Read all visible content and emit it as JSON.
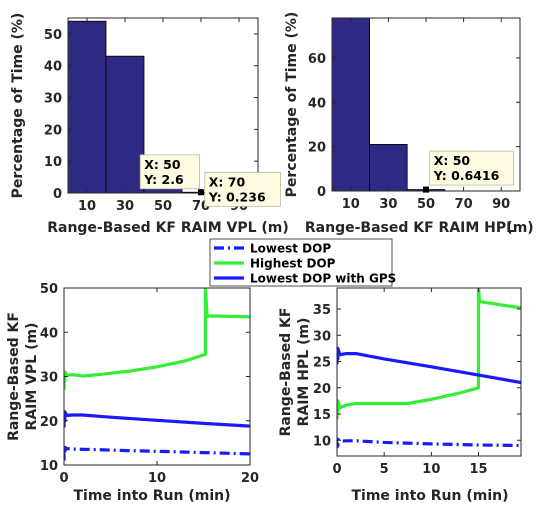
{
  "chart_data": [
    {
      "type": "bar",
      "xlabel": "Range-Based KF RAIM VPL (m)",
      "ylabel": "Percentage of Time (%)",
      "bin_width": 20,
      "bin_centers": [
        10,
        30,
        50,
        70,
        90
      ],
      "values": [
        54,
        43,
        2.6,
        0.236,
        0
      ],
      "xlim": [
        0,
        100
      ],
      "ylim": [
        0,
        55
      ],
      "xticks": [
        10,
        30,
        50,
        70,
        90
      ],
      "yticks": [
        0,
        10,
        20,
        30,
        40,
        50
      ],
      "bar_color": "#2e2a83",
      "datatips": [
        {
          "x_text": "X: 50",
          "y_text": "Y: 2.6",
          "x": 50,
          "y": 2.6,
          "box_x": 38,
          "box_y": 12
        },
        {
          "x_text": "X: 70",
          "y_text": "Y: 0.236",
          "x": 70,
          "y": 0.236,
          "box_x": 72,
          "box_y": 6.5
        }
      ]
    },
    {
      "type": "bar",
      "xlabel": "Range-Based KF RAIM HPL",
      "xlabel_suffix": "(m)",
      "ylabel": "Percentage of Time (%)",
      "bin_width": 20,
      "bin_centers": [
        10,
        30,
        50,
        70,
        90
      ],
      "values": [
        78,
        21,
        0.6416,
        0,
        0
      ],
      "xlim": [
        0,
        100
      ],
      "ylim": [
        0,
        78
      ],
      "xticks": [
        10,
        30,
        50,
        70,
        90
      ],
      "yticks": [
        0,
        20,
        40,
        60
      ],
      "bar_color": "#2e2a83",
      "datatips": [
        {
          "x_text": "X: 50",
          "y_text": "Y: 0.6416",
          "x": 50,
          "y": 0.6416,
          "box_x": 52,
          "box_y": 18
        }
      ]
    },
    {
      "type": "line",
      "xlabel": "Time into Run (min)",
      "ylabel": [
        "Range-Based KF",
        "RAIM VPL (m)"
      ],
      "xlim": [
        0,
        20
      ],
      "ylim": [
        10,
        50
      ],
      "xticks": [
        0,
        10,
        20
      ],
      "yticks": [
        10,
        20,
        30,
        40,
        50
      ],
      "series": [
        {
          "name": "Lowest DOP",
          "style": "dashdot",
          "color": "#1a1aff",
          "x": [
            0,
            0,
            0.1,
            0.1,
            0.3,
            1,
            3,
            6,
            10,
            15,
            20
          ],
          "y": [
            11,
            13.8,
            12.5,
            14,
            13.7,
            13.6,
            13.5,
            13.3,
            13.1,
            12.8,
            12.5
          ]
        },
        {
          "name": "Highest DOP",
          "style": "solid",
          "color": "#33ee33",
          "x": [
            0,
            0,
            0.1,
            0.1,
            0.3,
            1,
            2,
            4,
            7,
            10,
            13,
            15.2,
            15.2,
            15.4,
            15.4,
            20
          ],
          "y": [
            27,
            29.5,
            29,
            31,
            30.3,
            30.4,
            30.1,
            30.5,
            31.2,
            32.2,
            33.5,
            35,
            50,
            43.5,
            43.7,
            43.5
          ]
        },
        {
          "name": "Lowest DOP with GPS",
          "style": "solid",
          "color": "#1a1aff",
          "x": [
            0,
            0,
            0.1,
            0.1,
            0.3,
            1,
            2,
            5,
            10,
            15,
            20
          ],
          "y": [
            18.5,
            21,
            20,
            22,
            21.2,
            21.3,
            21.3,
            20.8,
            20.1,
            19.4,
            18.8
          ]
        }
      ]
    },
    {
      "type": "line",
      "xlabel": "Time into Run (min)",
      "ylabel": [
        "Range-Based KF",
        "RAIM HPL (m)"
      ],
      "xlim": [
        0,
        19.5
      ],
      "ylim": [
        7,
        39
      ],
      "xticks": [
        0,
        5,
        10,
        15
      ],
      "yticks": [
        10,
        15,
        20,
        25,
        30,
        35
      ],
      "series": [
        {
          "name": "Lowest DOP",
          "style": "dashdot",
          "color": "#1a1aff",
          "x": [
            0,
            0,
            0.1,
            0.1,
            0.3,
            1,
            2,
            5,
            10,
            15,
            19.5
          ],
          "y": [
            8.5,
            9.5,
            9,
            10.2,
            9.8,
            9.9,
            9.9,
            9.6,
            9.3,
            9.1,
            9
          ]
        },
        {
          "name": "Highest DOP",
          "style": "solid",
          "color": "#33ee33",
          "x": [
            0,
            0,
            0.1,
            0.1,
            0.3,
            1,
            2,
            4,
            7.5,
            10,
            13,
            15,
            15,
            15.1,
            15.1,
            19.5
          ],
          "y": [
            14,
            16,
            15.5,
            17.5,
            16.2,
            16.7,
            17,
            17,
            17,
            17.8,
            19,
            20,
            39,
            36.5,
            36.4,
            35.2
          ]
        },
        {
          "name": "Lowest DOP with GPS",
          "style": "solid",
          "color": "#1a1aff",
          "x": [
            0,
            0,
            0.1,
            0.1,
            0.3,
            1,
            2,
            5,
            10,
            15,
            19.5
          ],
          "y": [
            24.5,
            27,
            25.5,
            27.5,
            26.3,
            26.5,
            26.5,
            25.5,
            24,
            22.4,
            21
          ]
        }
      ]
    }
  ],
  "legend": {
    "entries": [
      {
        "label": "Lowest DOP",
        "style": "dashdot",
        "color": "#1a1aff"
      },
      {
        "label": "Highest DOP",
        "style": "solid",
        "color": "#33ee33"
      },
      {
        "label": "Lowest DOP with GPS",
        "style": "solid",
        "color": "#1a1aff"
      }
    ]
  }
}
